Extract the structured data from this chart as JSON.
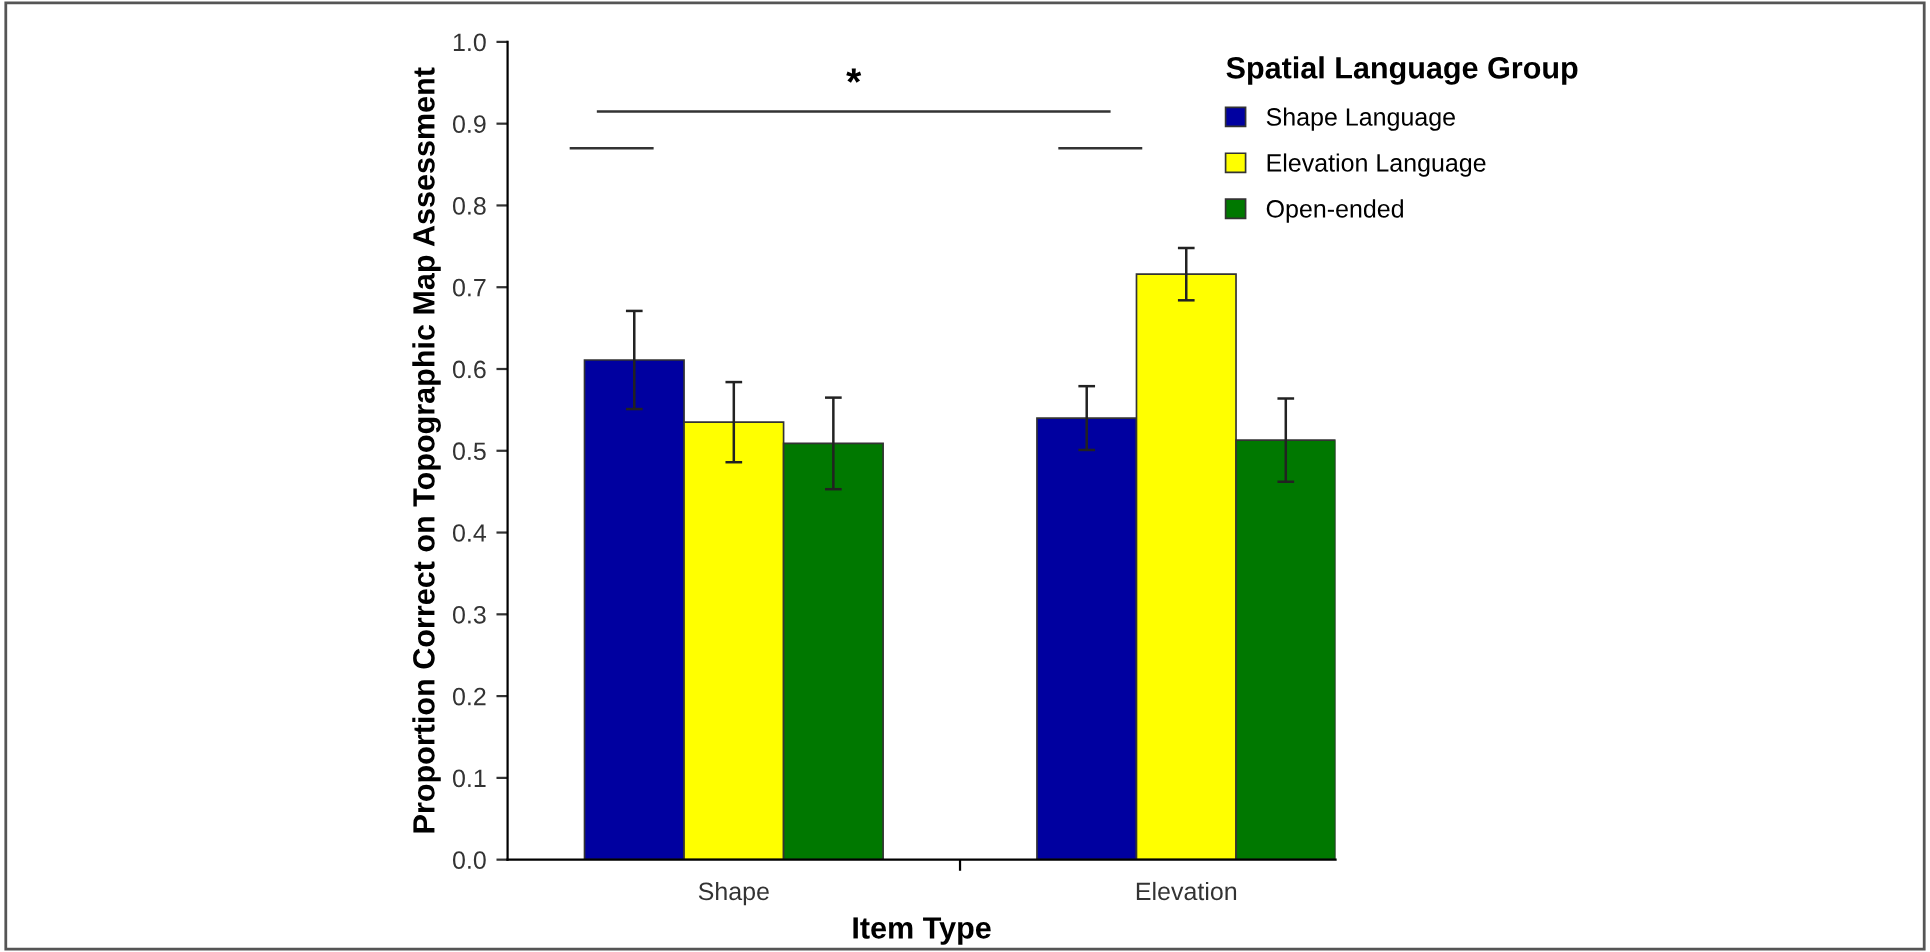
{
  "chart_data": {
    "type": "bar",
    "xlabel": "Item Type",
    "ylabel": "Proportion Correct on Topographic Map Assessment",
    "legend_title": "Spatial Language Group",
    "categories": [
      "Shape",
      "Elevation"
    ],
    "series": [
      {
        "name": "Shape Language",
        "color": "#0000a0",
        "values": [
          0.611,
          0.54
        ],
        "errors": [
          0.06,
          0.039
        ]
      },
      {
        "name": "Elevation Language",
        "color": "#ffff00",
        "values": [
          0.535,
          0.716
        ],
        "errors": [
          0.049,
          0.032
        ]
      },
      {
        "name": "Open-ended",
        "color": "#007800",
        "values": [
          0.509,
          0.513
        ],
        "errors": [
          0.056,
          0.051
        ]
      }
    ],
    "ylim": [
      0,
      1
    ],
    "yticks": [
      {
        "value": 0,
        "label": "0.0"
      },
      {
        "value": 0.1,
        "label": "0.1"
      },
      {
        "value": 0.2,
        "label": "0.2"
      },
      {
        "value": 0.3,
        "label": "0.3"
      },
      {
        "value": 0.4,
        "label": "0.4"
      },
      {
        "value": 0.5,
        "label": "0.5"
      },
      {
        "value": 0.6,
        "label": "0.6"
      },
      {
        "value": 0.7,
        "label": "0.7"
      },
      {
        "value": 0.8,
        "label": "0.8"
      },
      {
        "value": 0.9,
        "label": "0.9"
      },
      {
        "value": 1,
        "label": "1.0"
      }
    ],
    "annotations": [
      "*"
    ],
    "grid": false,
    "legend": "top right"
  }
}
